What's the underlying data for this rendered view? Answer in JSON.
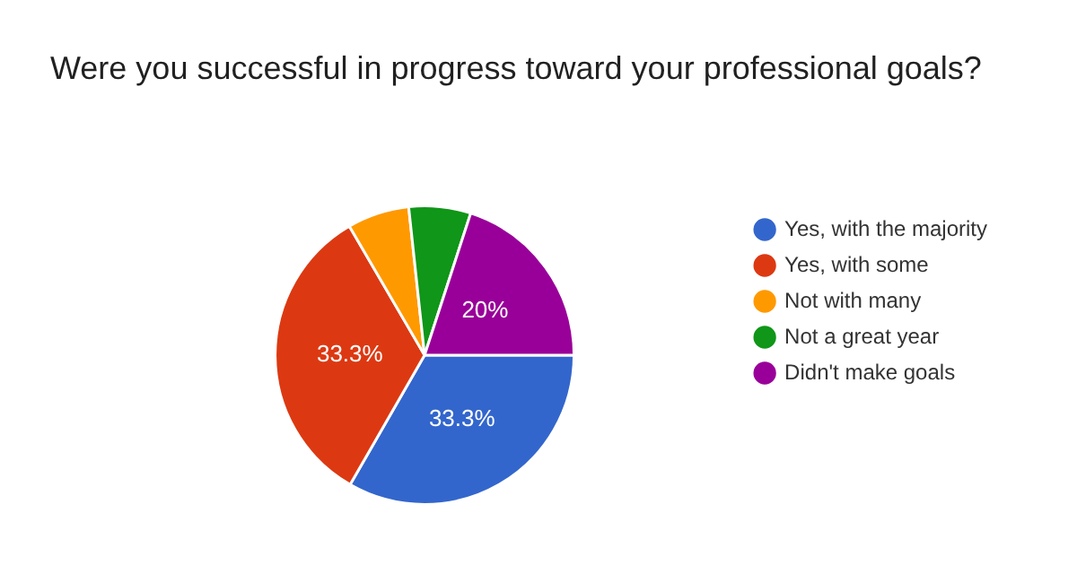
{
  "chart_data": {
    "type": "pie",
    "title": "Were you successful in progress toward your professional goals?",
    "categories": [
      "Yes, with the majority",
      "Yes, with some",
      "Not with many",
      "Not a great year",
      "Didn't make goals"
    ],
    "values": [
      33.3,
      33.3,
      6.7,
      6.7,
      20
    ],
    "colors": [
      "#3366cc",
      "#dc3912",
      "#ff9900",
      "#109618",
      "#990099"
    ],
    "value_labels": [
      "33.3%",
      "33.3%",
      null,
      null,
      "20%"
    ],
    "legend": "right"
  }
}
